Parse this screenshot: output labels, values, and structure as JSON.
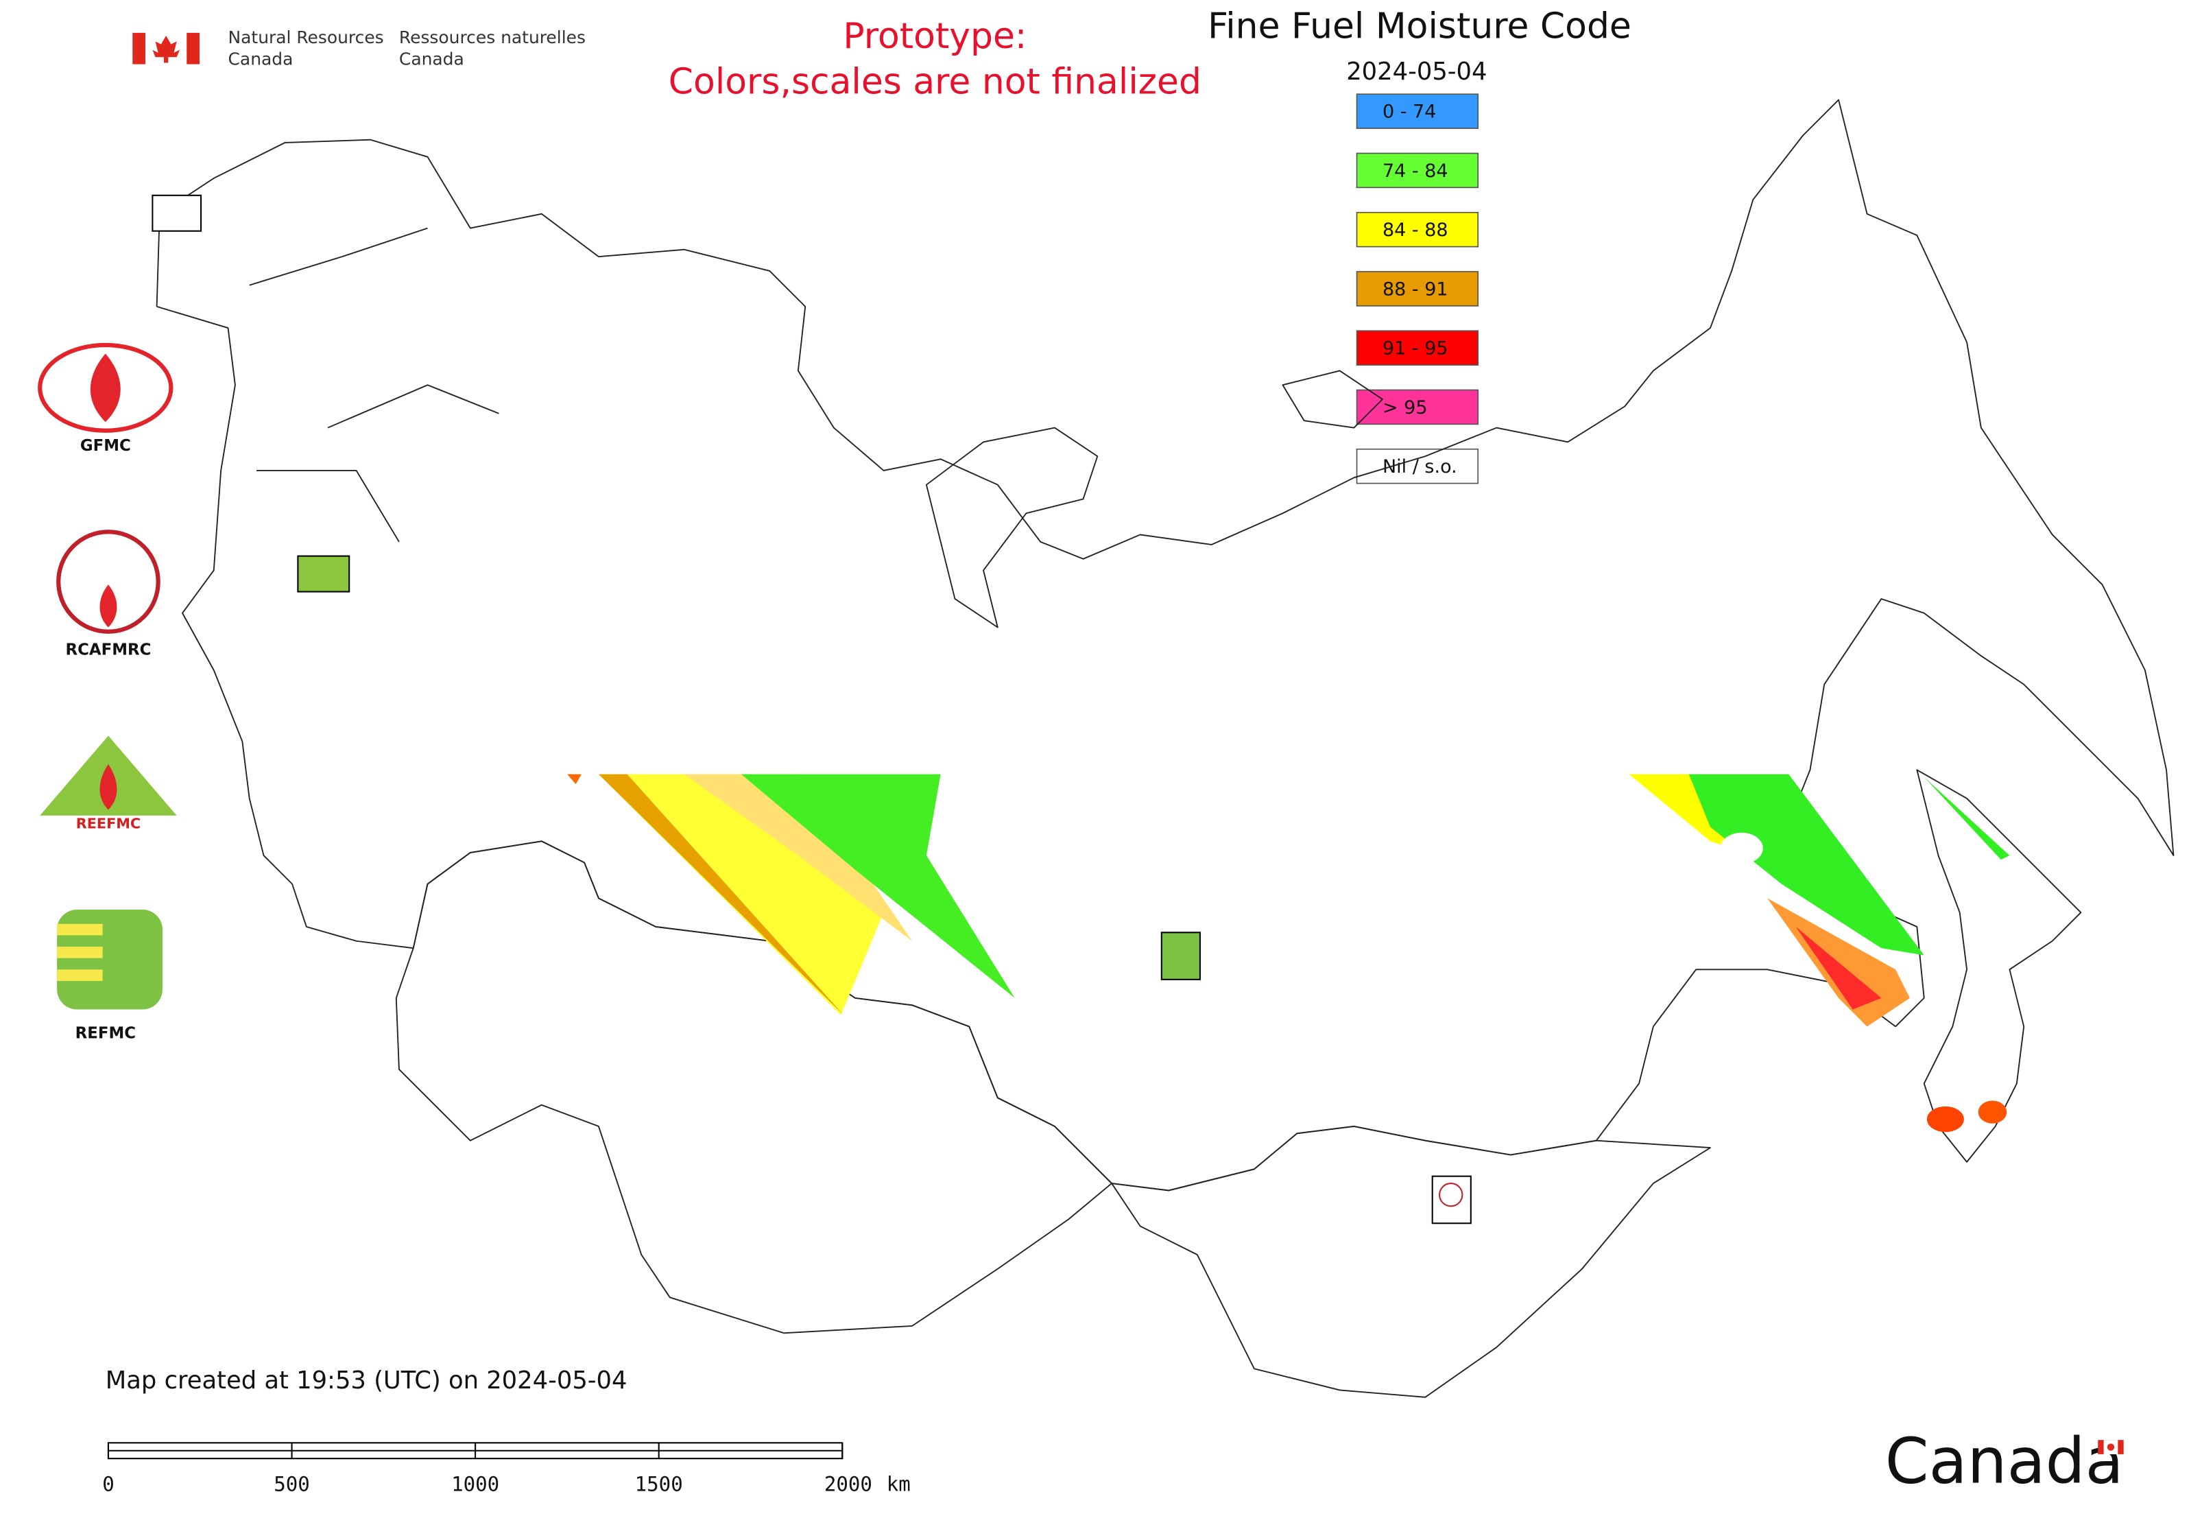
{
  "header": {
    "agency_en": [
      "Natural Resources",
      "Canada"
    ],
    "agency_fr": [
      "Ressources naturelles",
      "Canada"
    ],
    "notice": [
      "Prototype:",
      "Colors,scales are not finalized"
    ]
  },
  "map": {
    "title": "Fine Fuel Moisture Code",
    "date": "2024-05-04",
    "legend": [
      {
        "label": "0 - 74",
        "color": "#3399ff"
      },
      {
        "label": "74 - 84",
        "color": "#66ff33"
      },
      {
        "label": "84 - 88",
        "color": "#ffff00"
      },
      {
        "label": "88 - 91",
        "color": "#e69b00"
      },
      {
        "label": "91 - 95",
        "color": "#ff0000"
      },
      {
        "label": "> 95",
        "color": "#ff3399"
      },
      {
        "label": "Nil / s.o.",
        "color": "#ffffff"
      }
    ],
    "logos": [
      "GFMC",
      "RCAFMRC",
      "REEFMC",
      "REFMC"
    ]
  },
  "footer": {
    "created": "Map created at 19:53 (UTC) on 2024-05-04",
    "scale": {
      "ticks": [
        0,
        500,
        1000,
        1500,
        2000
      ],
      "unit": "km"
    },
    "wordmark": "Canada"
  }
}
